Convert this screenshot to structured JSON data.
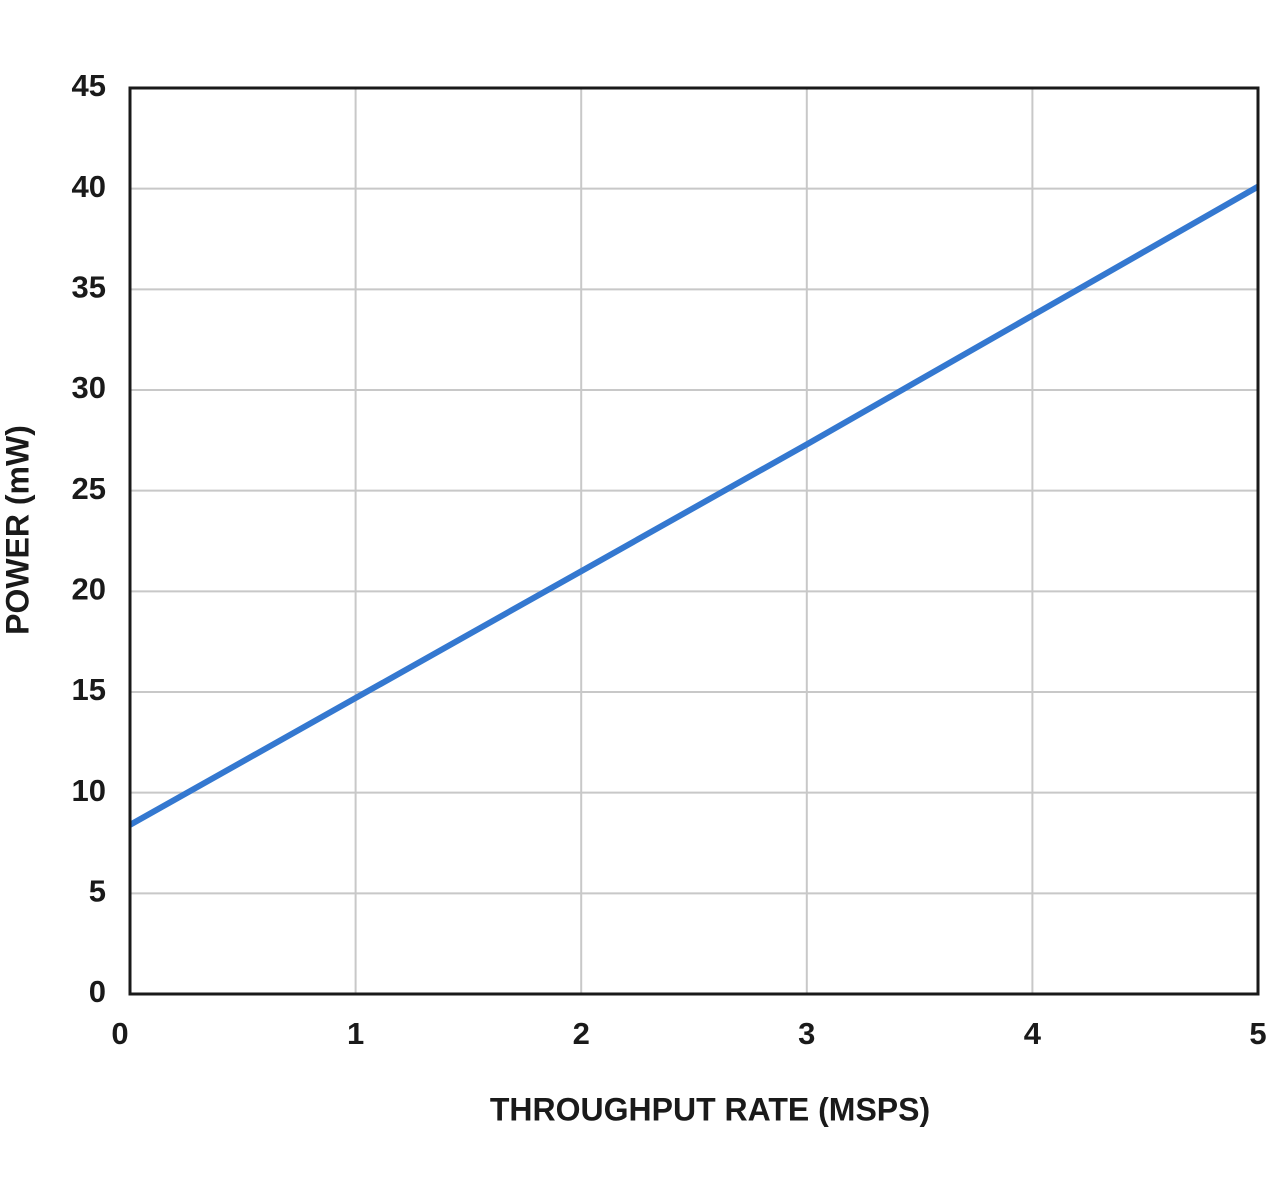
{
  "chart_data": {
    "type": "line",
    "x_label": "THROUGHPUT RATE (MSPS)",
    "y_label": "POWER (mW)",
    "x": [
      0,
      1,
      2,
      3,
      4,
      5
    ],
    "series": [
      {
        "color": "#3478d0",
        "values": [
          8.4,
          14.7,
          21.0,
          27.3,
          33.7,
          40.1
        ]
      }
    ],
    "xlim": [
      0,
      5
    ],
    "ylim": [
      0,
      45
    ],
    "xticks": [
      0,
      1,
      2,
      3,
      4,
      5
    ],
    "yticks": [
      0,
      5,
      10,
      15,
      20,
      25,
      30,
      35,
      40,
      45
    ],
    "grid": true
  }
}
